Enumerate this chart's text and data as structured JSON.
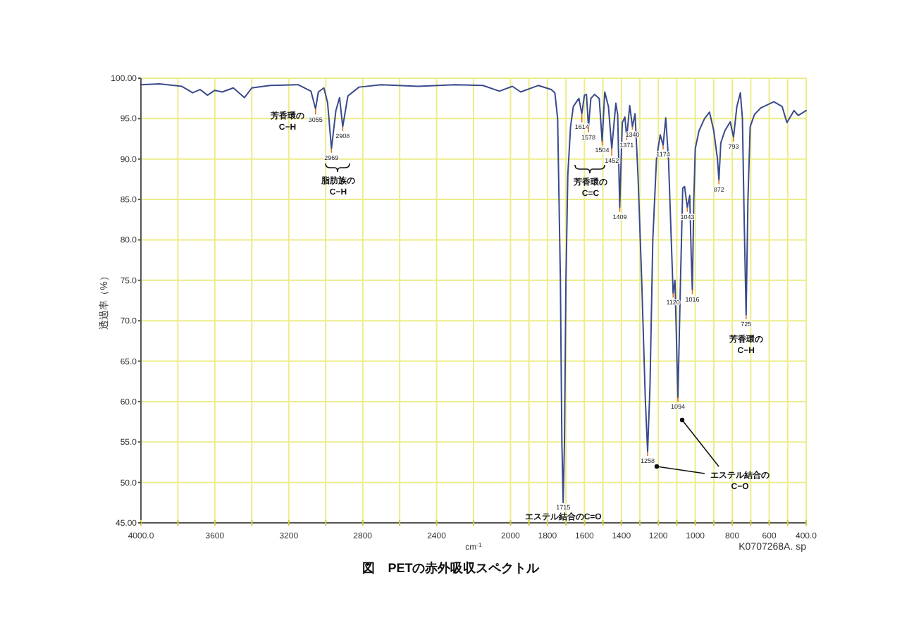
{
  "chart_data": {
    "type": "line",
    "title": "図　PETの赤外吸収スペクトル",
    "xlabel": "cm$^{-1}$",
    "ylabel": "透過率（%）",
    "x": [
      4000,
      3900,
      3780,
      3720,
      3680,
      3640,
      3600,
      3560,
      3500,
      3440,
      3400,
      3300,
      3150,
      3080,
      3055,
      3040,
      3010,
      2990,
      2969,
      2945,
      2925,
      2908,
      2880,
      2820,
      2700,
      2500,
      2300,
      2150,
      2060,
      1990,
      1945,
      1850,
      1780,
      1760,
      1745,
      1730,
      1722,
      1715,
      1708,
      1700,
      1690,
      1675,
      1660,
      1630,
      1614,
      1600,
      1589,
      1578,
      1565,
      1545,
      1520,
      1504,
      1490,
      1470,
      1452,
      1430,
      1420,
      1409,
      1395,
      1381,
      1371,
      1355,
      1340,
      1326,
      1310,
      1290,
      1270,
      1258,
      1245,
      1230,
      1210,
      1190,
      1174,
      1160,
      1145,
      1130,
      1120,
      1110,
      1094,
      1080,
      1068,
      1058,
      1043,
      1030,
      1022,
      1016,
      1008,
      1000,
      980,
      950,
      923,
      900,
      880,
      872,
      862,
      840,
      811,
      793,
      775,
      756,
      745,
      735,
      725,
      715,
      703,
      680,
      647,
      575,
      530,
      504,
      466,
      443,
      400
    ],
    "series": [
      {
        "color": "#3a4a8c",
        "values": [
          99.2,
          99.3,
          99.0,
          98.2,
          98.6,
          97.9,
          98.5,
          98.3,
          98.8,
          97.6,
          98.8,
          99.1,
          99.2,
          98.4,
          96.2,
          98.3,
          98.8,
          97.0,
          91.3,
          96.0,
          97.6,
          94.0,
          97.8,
          98.9,
          99.2,
          99.0,
          99.2,
          99.1,
          98.4,
          99.0,
          98.3,
          99.1,
          98.6,
          98.2,
          95.0,
          75.0,
          55.0,
          47.5,
          55.0,
          75.0,
          88.0,
          94.0,
          96.5,
          97.5,
          95.6,
          97.9,
          98.0,
          94.0,
          97.5,
          98.0,
          97.5,
          92.2,
          98.3,
          96.5,
          91.3,
          96.9,
          95.5,
          84.0,
          94.5,
          95.2,
          92.7,
          96.6,
          94.0,
          95.6,
          88.0,
          75.0,
          60.0,
          53.8,
          62.0,
          80.0,
          90.0,
          93.0,
          91.7,
          95.1,
          90.0,
          80.0,
          73.4,
          75.0,
          60.5,
          75.0,
          86.4,
          86.6,
          84.0,
          85.5,
          78.0,
          73.8,
          85.0,
          91.3,
          93.5,
          95.0,
          95.8,
          93.5,
          90.0,
          87.4,
          92.0,
          93.5,
          94.6,
          92.7,
          96.5,
          98.2,
          95.0,
          82.0,
          70.7,
          85.0,
          94.0,
          95.5,
          96.3,
          97.1,
          96.5,
          94.5,
          96.0,
          95.4,
          96.0
        ]
      }
    ],
    "xlim": [
      4000,
      400
    ],
    "xticks": [
      {
        "value": 4000,
        "label": "4000.0"
      },
      {
        "value": 3800,
        "label": null
      },
      3600,
      {
        "value": 3400,
        "label": null
      },
      3200,
      {
        "value": 3000,
        "label": null
      },
      2800,
      {
        "value": 2600,
        "label": null
      },
      2400,
      {
        "value": 2200,
        "label": null
      },
      2000,
      {
        "value": 1900,
        "label": null
      },
      1800,
      {
        "value": 1700,
        "label": null
      },
      1600,
      {
        "value": 1500,
        "label": null
      },
      1400,
      {
        "value": 1300,
        "label": null
      },
      1200,
      {
        "value": 1100,
        "label": null
      },
      1000,
      {
        "value": 900,
        "label": null
      },
      800,
      {
        "value": 700,
        "label": null
      },
      600,
      {
        "value": 500,
        "label": null
      },
      {
        "value": 400,
        "label": "400.0"
      }
    ],
    "ylim": [
      45,
      100
    ],
    "yticks": [
      {
        "value": 45,
        "label": "45.00"
      },
      {
        "value": 50,
        "label": "50.0"
      },
      {
        "value": 55,
        "label": "55.0"
      },
      {
        "value": 60,
        "label": "60.0"
      },
      {
        "value": 65,
        "label": "65.0"
      },
      {
        "value": 70,
        "label": "70.0"
      },
      {
        "value": 75,
        "label": "75.0"
      },
      {
        "value": 80,
        "label": "80.0"
      },
      {
        "value": 85,
        "label": "85.0"
      },
      {
        "value": 90,
        "label": "90.0"
      },
      {
        "value": 95,
        "label": "95.0"
      },
      {
        "value": 100,
        "label": "100.00"
      }
    ],
    "grid": true,
    "marker": "none",
    "line_style": "solid",
    "annotations": [
      {
        "text": "3055",
        "x": 3055,
        "y": 96.2
      },
      {
        "text": "2969",
        "x": 2969,
        "y": 91.3
      },
      {
        "text": "2908",
        "x": 2908,
        "y": 94.0
      },
      {
        "text": "1715",
        "x": 1715,
        "y": 47.5
      },
      {
        "text": "1614",
        "x": 1614,
        "y": 95.6
      },
      {
        "text": "1578",
        "x": 1578,
        "y": 94.0
      },
      {
        "text": "1504",
        "x": 1504,
        "y": 92.2
      },
      {
        "text": "1452",
        "x": 1452,
        "y": 91.3
      },
      {
        "text": "1409",
        "x": 1409,
        "y": 84.0
      },
      {
        "text": "1371",
        "x": 1371,
        "y": 92.7
      },
      {
        "text": "1340",
        "x": 1340,
        "y": 94.0
      },
      {
        "text": "1258",
        "x": 1258,
        "y": 53.8
      },
      {
        "text": "1174",
        "x": 1174,
        "y": 91.7
      },
      {
        "text": "1120",
        "x": 1120,
        "y": 73.4
      },
      {
        "text": "1094",
        "x": 1094,
        "y": 60.5
      },
      {
        "text": "1043",
        "x": 1043,
        "y": 84.0
      },
      {
        "text": "1016",
        "x": 1016,
        "y": 73.8
      },
      {
        "text": "872",
        "x": 872,
        "y": 87.4
      },
      {
        "text": "793",
        "x": 793,
        "y": 92.7
      },
      {
        "text": "725",
        "x": 725,
        "y": 70.7
      },
      "芳香環の\nC−H",
      "脂肪族の\nC−H",
      "芳香環の\nC=C",
      {
        "text": "エステル結合のC=O",
        "x": 1715,
        "y": 47.5
      },
      "エステル結合の\nC−O",
      {
        "text": "芳香環の\nC−H",
        "x": 725,
        "y": 70.7
      },
      "K0707268A. sp"
    ]
  }
}
